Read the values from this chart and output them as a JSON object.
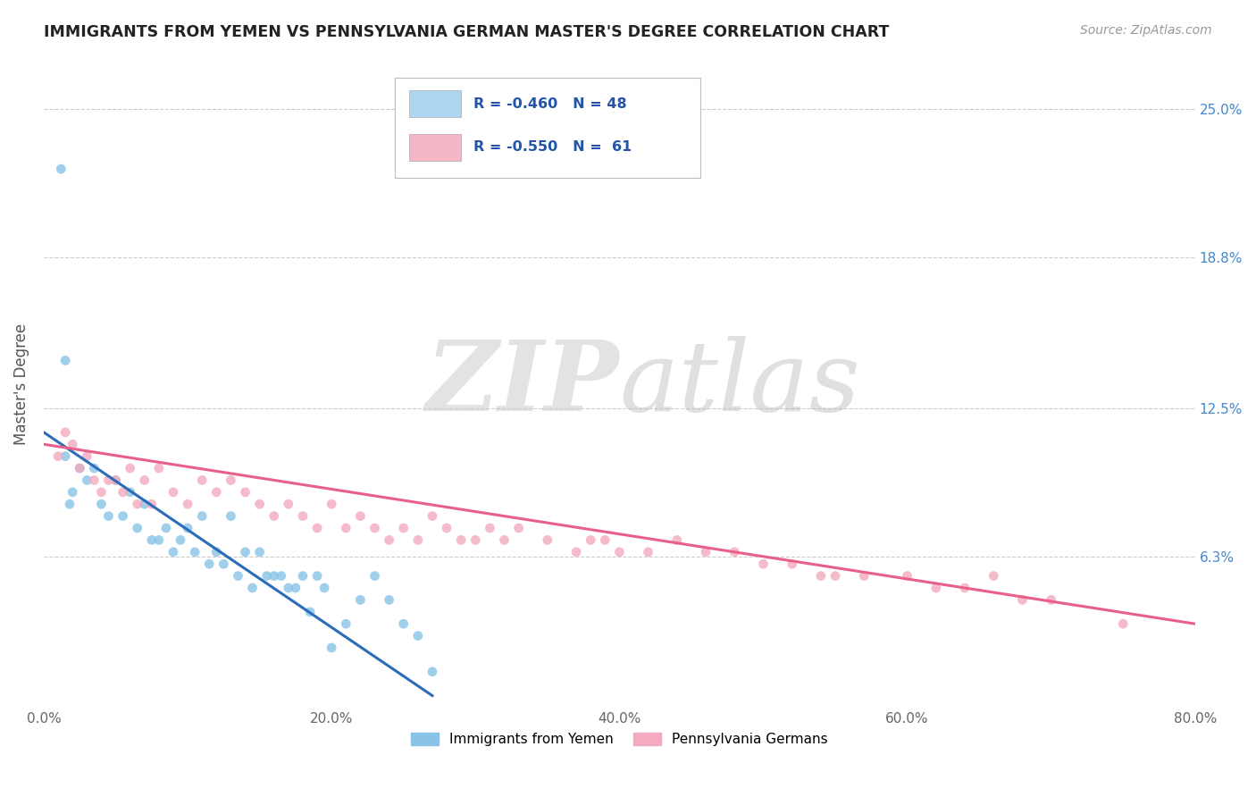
{
  "title": "IMMIGRANTS FROM YEMEN VS PENNSYLVANIA GERMAN MASTER'S DEGREE CORRELATION CHART",
  "source_text": "Source: ZipAtlas.com",
  "ylabel": "Master's Degree",
  "xlim": [
    0.0,
    80.0
  ],
  "ylim": [
    0.0,
    27.0
  ],
  "right_yticks": [
    6.3,
    12.5,
    18.8,
    25.0
  ],
  "right_yticklabels": [
    "6.3%",
    "12.5%",
    "18.8%",
    "25.0%"
  ],
  "bottom_xticks": [
    0.0,
    20.0,
    40.0,
    60.0,
    80.0
  ],
  "bottom_xticklabels": [
    "0.0%",
    "20.0%",
    "40.0%",
    "60.0%",
    "80.0%"
  ],
  "blue_scatter_x": [
    1.2,
    1.5,
    1.5,
    1.8,
    2.0,
    2.5,
    3.0,
    3.5,
    4.0,
    4.5,
    5.0,
    5.5,
    6.0,
    6.5,
    7.0,
    7.5,
    8.0,
    8.5,
    9.0,
    9.5,
    10.0,
    10.5,
    11.0,
    11.5,
    12.0,
    12.5,
    13.0,
    13.5,
    14.0,
    14.5,
    15.0,
    15.5,
    16.0,
    16.5,
    17.0,
    17.5,
    18.0,
    18.5,
    19.0,
    19.5,
    20.0,
    21.0,
    22.0,
    23.0,
    24.0,
    25.0,
    26.0,
    27.0
  ],
  "blue_scatter_y": [
    22.5,
    14.5,
    10.5,
    8.5,
    9.0,
    10.0,
    9.5,
    10.0,
    8.5,
    8.0,
    9.5,
    8.0,
    9.0,
    7.5,
    8.5,
    7.0,
    7.0,
    7.5,
    6.5,
    7.0,
    7.5,
    6.5,
    8.0,
    6.0,
    6.5,
    6.0,
    8.0,
    5.5,
    6.5,
    5.0,
    6.5,
    5.5,
    5.5,
    5.5,
    5.0,
    5.0,
    5.5,
    4.0,
    5.5,
    5.0,
    2.5,
    3.5,
    4.5,
    5.5,
    4.5,
    3.5,
    3.0,
    1.5
  ],
  "pink_scatter_x": [
    1.0,
    1.5,
    2.0,
    2.5,
    3.0,
    3.5,
    4.0,
    4.5,
    5.0,
    5.5,
    6.0,
    6.5,
    7.0,
    7.5,
    8.0,
    9.0,
    10.0,
    11.0,
    12.0,
    13.0,
    14.0,
    15.0,
    16.0,
    17.0,
    18.0,
    19.0,
    20.0,
    21.0,
    22.0,
    23.0,
    24.0,
    25.0,
    26.0,
    27.0,
    28.0,
    29.0,
    30.0,
    31.0,
    32.0,
    33.0,
    35.0,
    37.0,
    38.0,
    39.0,
    40.0,
    42.0,
    44.0,
    46.0,
    48.0,
    50.0,
    52.0,
    54.0,
    55.0,
    57.0,
    60.0,
    62.0,
    64.0,
    66.0,
    68.0,
    70.0,
    75.0
  ],
  "pink_scatter_y": [
    10.5,
    11.5,
    11.0,
    10.0,
    10.5,
    9.5,
    9.0,
    9.5,
    9.5,
    9.0,
    10.0,
    8.5,
    9.5,
    8.5,
    10.0,
    9.0,
    8.5,
    9.5,
    9.0,
    9.5,
    9.0,
    8.5,
    8.0,
    8.5,
    8.0,
    7.5,
    8.5,
    7.5,
    8.0,
    7.5,
    7.0,
    7.5,
    7.0,
    8.0,
    7.5,
    7.0,
    7.0,
    7.5,
    7.0,
    7.5,
    7.0,
    6.5,
    7.0,
    7.0,
    6.5,
    6.5,
    7.0,
    6.5,
    6.5,
    6.0,
    6.0,
    5.5,
    5.5,
    5.5,
    5.5,
    5.0,
    5.0,
    5.5,
    4.5,
    4.5,
    3.5
  ],
  "blue_line_x": [
    0.0,
    27.0
  ],
  "blue_line_y": [
    11.5,
    0.5
  ],
  "pink_line_x": [
    0.0,
    80.0
  ],
  "pink_line_y": [
    11.0,
    3.5
  ],
  "blue_color": "#89C4E8",
  "pink_color": "#F4AABF",
  "blue_line_color": "#2B6CB8",
  "pink_line_color": "#E8608A",
  "grid_color": "#CCCCCC",
  "background_color": "#FFFFFF",
  "title_color": "#222222",
  "right_tick_color": "#4488CC",
  "legend_box_blue": "#AED6F1",
  "legend_box_pink": "#F5B7C5",
  "legend_r1": "R = -0.460",
  "legend_n1": "N = 48",
  "legend_r2": "R = -0.550",
  "legend_n2": "N =  61",
  "legend_text_color": "#2255AA"
}
